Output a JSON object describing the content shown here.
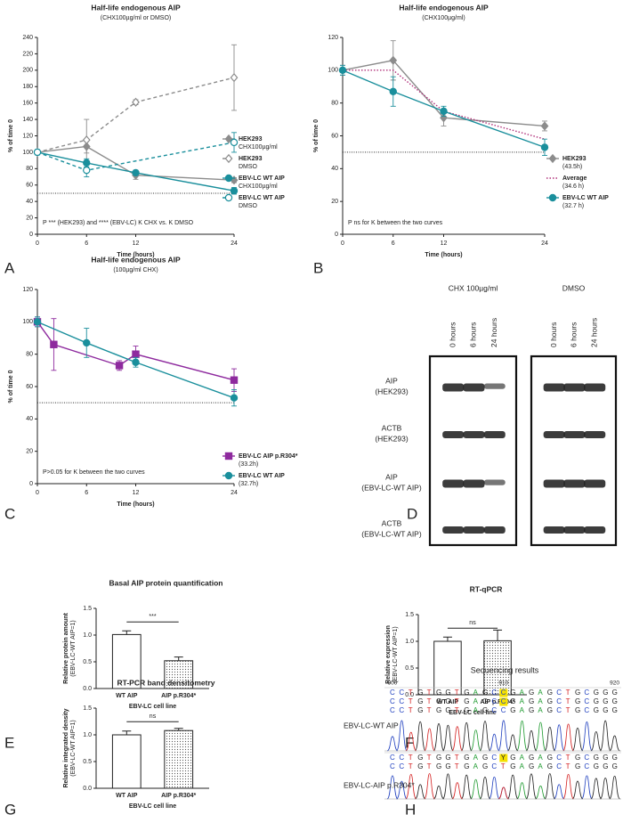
{
  "chart_data": [
    {
      "type": "line",
      "panel": "A",
      "title": "Half-life endogenous AIP",
      "subtitle": "(CHX100µg/ml or DMSO)",
      "xlabel": "Time (hours)",
      "ylabel": "% of time 0",
      "xlim": [
        0,
        24
      ],
      "xticks": [
        0,
        6,
        12,
        24
      ],
      "ylim": [
        0,
        240
      ],
      "yticks": [
        0,
        20,
        40,
        60,
        80,
        100,
        120,
        140,
        160,
        180,
        200,
        220,
        240
      ],
      "reference_line": 50,
      "annotation": "P *** (HEK293) and **** (EBV-LC) K CHX vs. K DMSO",
      "series": [
        {
          "name": "HEK293",
          "detail": "CHX100µg/ml",
          "color": "#8c8c8c",
          "line": "solid",
          "marker": "diamond",
          "filled": true,
          "x": [
            0,
            6,
            12,
            24
          ],
          "values": [
            100,
            107,
            72,
            66
          ],
          "errors": [
            3,
            8,
            5,
            3
          ]
        },
        {
          "name": "HEK293",
          "detail": "DMSO",
          "color": "#8c8c8c",
          "line": "dashed",
          "marker": "diamond",
          "filled": false,
          "x": [
            0,
            6,
            12,
            24
          ],
          "values": [
            100,
            115,
            161,
            191
          ],
          "errors": [
            3,
            25,
            3,
            40
          ]
        },
        {
          "name": "EBV-LC WT AIP",
          "detail": "CHX100µg/ml",
          "color": "#1a8f9c",
          "line": "solid",
          "marker": "circle",
          "filled": true,
          "x": [
            0,
            6,
            12,
            24
          ],
          "values": [
            100,
            87,
            75,
            53
          ],
          "errors": [
            3,
            5,
            3,
            4
          ]
        },
        {
          "name": "EBV-LC WT AIP",
          "detail": "DMSO",
          "color": "#1a8f9c",
          "line": "dashed",
          "marker": "circle",
          "filled": false,
          "x": [
            0,
            6,
            24
          ],
          "values": [
            100,
            78,
            112
          ],
          "errors": [
            3,
            8,
            12
          ]
        }
      ]
    },
    {
      "type": "line",
      "panel": "B",
      "title": "Half-life endogenous AIP",
      "subtitle": "(CHX100µg/ml)",
      "xlabel": "Time (hours)",
      "ylabel": "% of time 0",
      "xlim": [
        0,
        24
      ],
      "xticks": [
        0,
        6,
        12,
        24
      ],
      "ylim": [
        0,
        120
      ],
      "yticks": [
        0,
        20,
        40,
        60,
        80,
        100,
        120
      ],
      "reference_line": 50,
      "annotation": "P ns for K between the two curves",
      "series": [
        {
          "name": "HEK293",
          "detail": "(43.5h)",
          "color": "#8c8c8c",
          "line": "solid",
          "marker": "diamond",
          "filled": true,
          "x": [
            0,
            6,
            12,
            24
          ],
          "values": [
            100,
            106,
            71,
            66
          ],
          "errors": [
            3,
            12,
            5,
            3
          ]
        },
        {
          "name": "Average",
          "detail": "(34.6 h)",
          "color": "#b0307a",
          "line": "dotted",
          "marker": "none",
          "filled": false,
          "x": [
            0,
            6,
            12,
            24
          ],
          "values": [
            100,
            100,
            75,
            58
          ]
        },
        {
          "name": "EBV-LC WT AIP",
          "detail": "(32.7 h)",
          "color": "#1a8f9c",
          "line": "solid",
          "marker": "circle",
          "filled": true,
          "x": [
            0,
            6,
            12,
            24
          ],
          "values": [
            100,
            87,
            75,
            53
          ],
          "errors": [
            3,
            9,
            3,
            5
          ]
        }
      ]
    },
    {
      "type": "line",
      "panel": "C",
      "title": "Half-life endogenous AIP",
      "subtitle": "(100µg/ml CHX)",
      "xlabel": "Time (hours)",
      "ylabel": "% of time 0",
      "xlim": [
        0,
        24
      ],
      "xticks": [
        0,
        6,
        12,
        24
      ],
      "ylim": [
        0,
        120
      ],
      "yticks": [
        0,
        20,
        40,
        60,
        80,
        100,
        120
      ],
      "reference_line": 50,
      "annotation": "P>0.05 for K between the two curves",
      "series": [
        {
          "name": "EBV-LC AIP p.R304*",
          "detail": "(33.2h)",
          "color": "#8e2a9e",
          "line": "solid",
          "marker": "square",
          "filled": true,
          "x": [
            0,
            2,
            10,
            12,
            24
          ],
          "values": [
            100,
            86,
            73,
            80,
            64
          ],
          "errors": [
            3,
            16,
            3,
            5,
            7
          ]
        },
        {
          "name": "EBV-LC WT AIP",
          "detail": "(32.7h)",
          "color": "#1a8f9c",
          "line": "solid",
          "marker": "circle",
          "filled": true,
          "x": [
            0,
            6,
            12,
            24
          ],
          "values": [
            100,
            87,
            75,
            53
          ],
          "errors": [
            3,
            9,
            3,
            5
          ]
        }
      ]
    },
    {
      "type": "bar",
      "panel": "E",
      "title": "Basal AIP protein quantification",
      "ylabel": "Relative protein amount",
      "ylabel_sub": "(EBV-LC-WT AIP=1)",
      "xlabel": "EBV-LC cell line",
      "categories": [
        "WT AIP",
        "AIP p.R304*"
      ],
      "values": [
        1.01,
        0.52
      ],
      "errors": [
        0.07,
        0.07
      ],
      "bar_styles": [
        "open",
        "dotted"
      ],
      "significance": "***",
      "ylim": [
        0,
        1.5
      ],
      "yticks": [
        {
          "value": 0,
          "label": "0.0"
        },
        0.5,
        {
          "value": 1,
          "label": "1.0"
        },
        1.5
      ]
    },
    {
      "type": "bar",
      "panel": "F",
      "title": "RT-qPCR",
      "ylabel": "Relative expression",
      "ylabel_sub": "(EBV-LC-WT AIP=1)",
      "xlabel": "EBV-LC cell line",
      "categories": [
        "WT AIP",
        "AIP p.R304*"
      ],
      "values": [
        1.0,
        1.01
      ],
      "errors": [
        0.08,
        0.2
      ],
      "bar_styles": [
        "open",
        "dotted"
      ],
      "significance": "ns",
      "ylim": [
        0,
        1.5
      ],
      "yticks": [
        {
          "value": 0,
          "label": "0.0"
        },
        0.5,
        {
          "value": 1,
          "label": "1.0"
        },
        1.5
      ]
    },
    {
      "type": "bar",
      "panel": "G",
      "title": "RT-PCR  band densitometry",
      "ylabel": "Relative integrated density",
      "ylabel_sub": "(EBV-LC-WT AIP=1)",
      "xlabel": "EBV-LC cell line",
      "categories": [
        "WT AIP",
        "AIP p.R304*"
      ],
      "values": [
        1.0,
        1.08
      ],
      "errors": [
        0.07,
        0.04
      ],
      "bar_styles": [
        "open",
        "dotted"
      ],
      "significance": "ns",
      "ylim": [
        0,
        1.5
      ],
      "yticks": [
        {
          "value": 0,
          "label": "0.0"
        },
        0.5,
        {
          "value": 1,
          "label": "1.0"
        },
        1.5
      ]
    }
  ],
  "western_blot": {
    "panel": "D",
    "groups": [
      {
        "label": "CHX 100µg/ml",
        "lanes": [
          "0 hours",
          "6 hours",
          "24 hours"
        ]
      },
      {
        "label": "DMSO",
        "lanes": [
          "0 hours",
          "6 hours",
          "24 hours"
        ]
      }
    ],
    "rows": [
      {
        "label": "AIP",
        "sublabel": "(HEK293)"
      },
      {
        "label": "ACTB",
        "sublabel": "(HEK293)"
      },
      {
        "label": "AIP",
        "sublabel": "(EBV-LC-WT AIP)"
      },
      {
        "label": "ACTB",
        "sublabel": "(EBV-LC-WT AIP)"
      }
    ]
  },
  "sequencing": {
    "panel": "H",
    "title": "Sequencing results",
    "positions": [
      900,
      910,
      920
    ],
    "samples": [
      {
        "label": "EBV-LC-WT AIP",
        "rows": [
          {
            "bases": "CCTGTGGTGAGCCGAGAGCTGCGGG",
            "highlight": 12
          },
          {
            "bases": "CCTGTGGTGAGCCGAGAGCTGCGGG",
            "highlight": 12
          },
          {
            "bases": "CCTGTGGTGAGCCGAGAGCTGCGGG",
            "highlight": null
          }
        ]
      },
      {
        "label": "EBV-LC-AIP p.R304*",
        "rows": [
          {
            "bases": "CCTGTGGTGAGCYGAGAGCTGCGGG",
            "highlight": 12
          },
          {
            "bases": "CCTGTGGTGAGCTGAGAGCTGCGGG",
            "highlight": null
          }
        ]
      }
    ]
  }
}
